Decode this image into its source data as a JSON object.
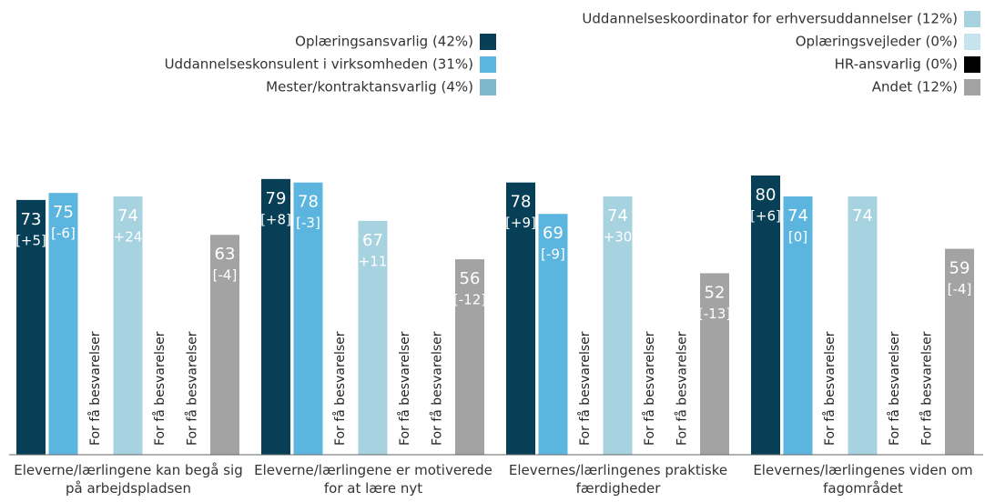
{
  "chart_data": {
    "type": "bar",
    "categories": [
      "Eleverne/lærlingene kan begå sig på arbejdspladsen",
      "Eleverne/lærlingene er motiverede for at lære nyt",
      "Elevernes/lærlingenes praktiske færdigheder",
      "Elevernes/lærlingenes viden om fagområdet"
    ],
    "missing_label": "For få besvarelser",
    "ylim": [
      0,
      80
    ],
    "series": [
      {
        "name": "Oplæringsansvarlig (42%)",
        "color": "#073f57",
        "values": [
          73,
          79,
          78,
          80
        ],
        "changes": [
          "[+5]",
          "[+8]",
          "[+9]",
          "[+6]"
        ]
      },
      {
        "name": "Uddannelseskonsulent i virksomheden (31%)",
        "color": "#5cb5de",
        "values": [
          75,
          78,
          69,
          74
        ],
        "changes": [
          "[-6]",
          "[-3]",
          "[-9]",
          "[0]"
        ]
      },
      {
        "name": "Mester/kontraktansvarlig (4%)",
        "color": "#7db7cb",
        "values": [
          null,
          null,
          null,
          null
        ]
      },
      {
        "name": "Uddannelseskoordinator for erhversuddannelser (12%)",
        "color": "#a7d2e0",
        "values": [
          74,
          67,
          74,
          74
        ],
        "changes": [
          "+24",
          "+11",
          "+30",
          null
        ]
      },
      {
        "name": "Oplæringsvejleder (0%)",
        "color": "#c6e4ee",
        "values": [
          null,
          null,
          null,
          null
        ]
      },
      {
        "name": "HR-ansvarlig (0%)",
        "color": "#000000",
        "values": [
          null,
          null,
          null,
          null
        ]
      },
      {
        "name": "Andet (12%)",
        "color": "#a3a3a3",
        "values": [
          63,
          56,
          52,
          59
        ],
        "changes": [
          "[-4]",
          "[-12]",
          "[-13]",
          "[-4]"
        ]
      }
    ]
  }
}
